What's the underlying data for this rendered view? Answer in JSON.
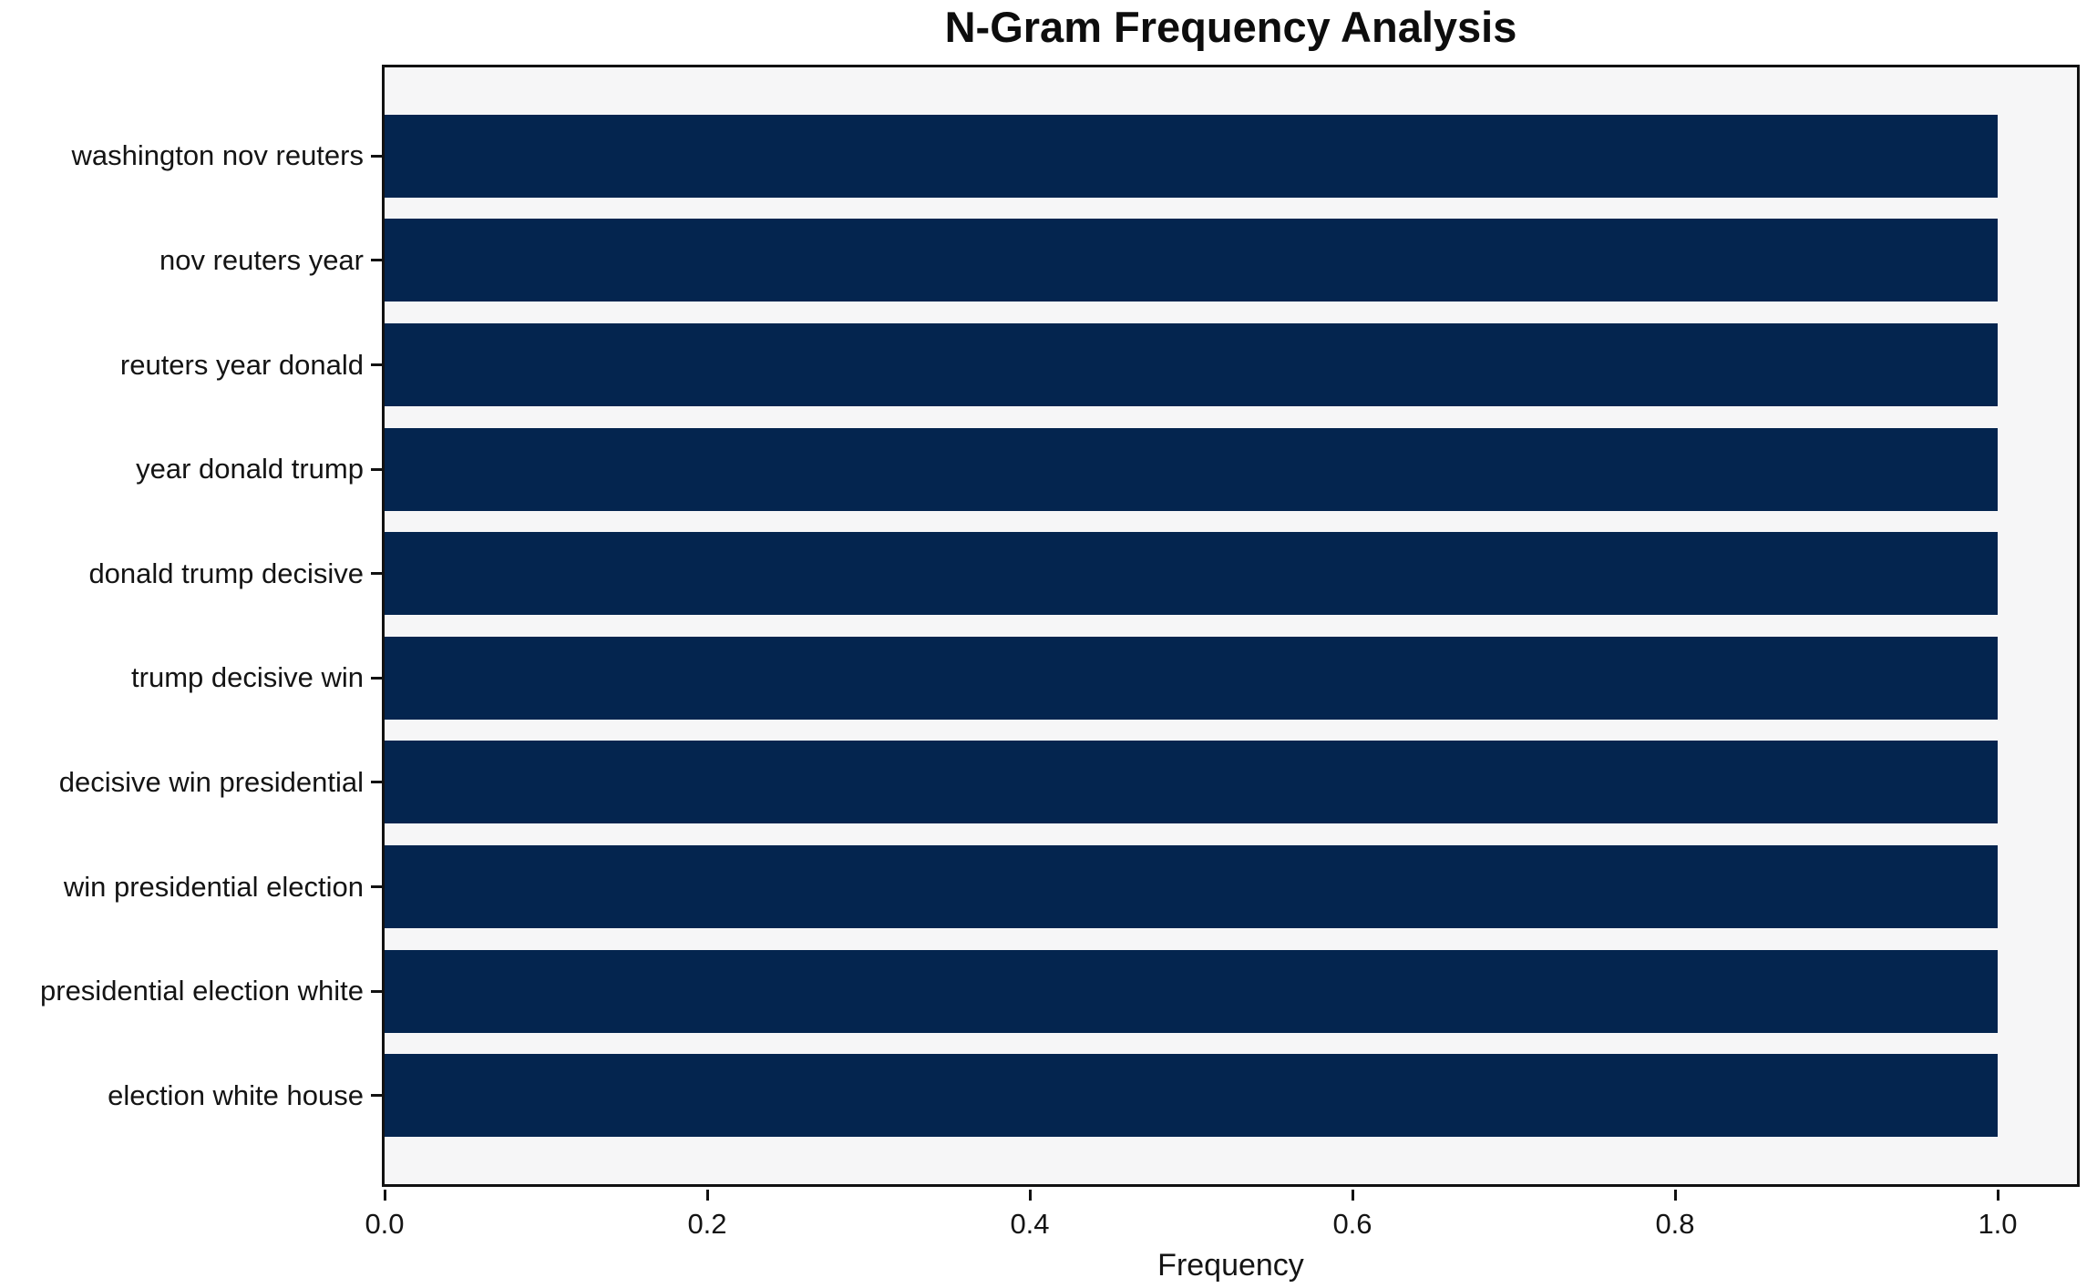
{
  "chart_data": {
    "type": "bar",
    "orientation": "horizontal",
    "title": "N-Gram Frequency Analysis",
    "xlabel": "Frequency",
    "ylabel": "",
    "categories": [
      "washington nov reuters",
      "nov reuters year",
      "reuters year donald",
      "year donald trump",
      "donald trump decisive",
      "trump decisive win",
      "decisive win presidential",
      "win presidential election",
      "presidential election white",
      "election white house"
    ],
    "values": [
      1.0,
      1.0,
      1.0,
      1.0,
      1.0,
      1.0,
      1.0,
      1.0,
      1.0,
      1.0
    ],
    "x_ticks": [
      {
        "value": 0.0,
        "label": "0.0"
      },
      {
        "value": 0.2,
        "label": "0.2"
      },
      {
        "value": 0.4,
        "label": "0.4"
      },
      {
        "value": 0.6,
        "label": "0.6"
      },
      {
        "value": 0.8,
        "label": "0.8"
      },
      {
        "value": 1.0,
        "label": "1.0"
      }
    ],
    "xlim": [
      0,
      1.05
    ],
    "grid": false,
    "legend": null,
    "colors": {
      "bar": "#04254f",
      "plot_background": "#f6f6f7",
      "figure_background": "#ffffff",
      "spine": "#111111",
      "text": "#141414"
    }
  }
}
